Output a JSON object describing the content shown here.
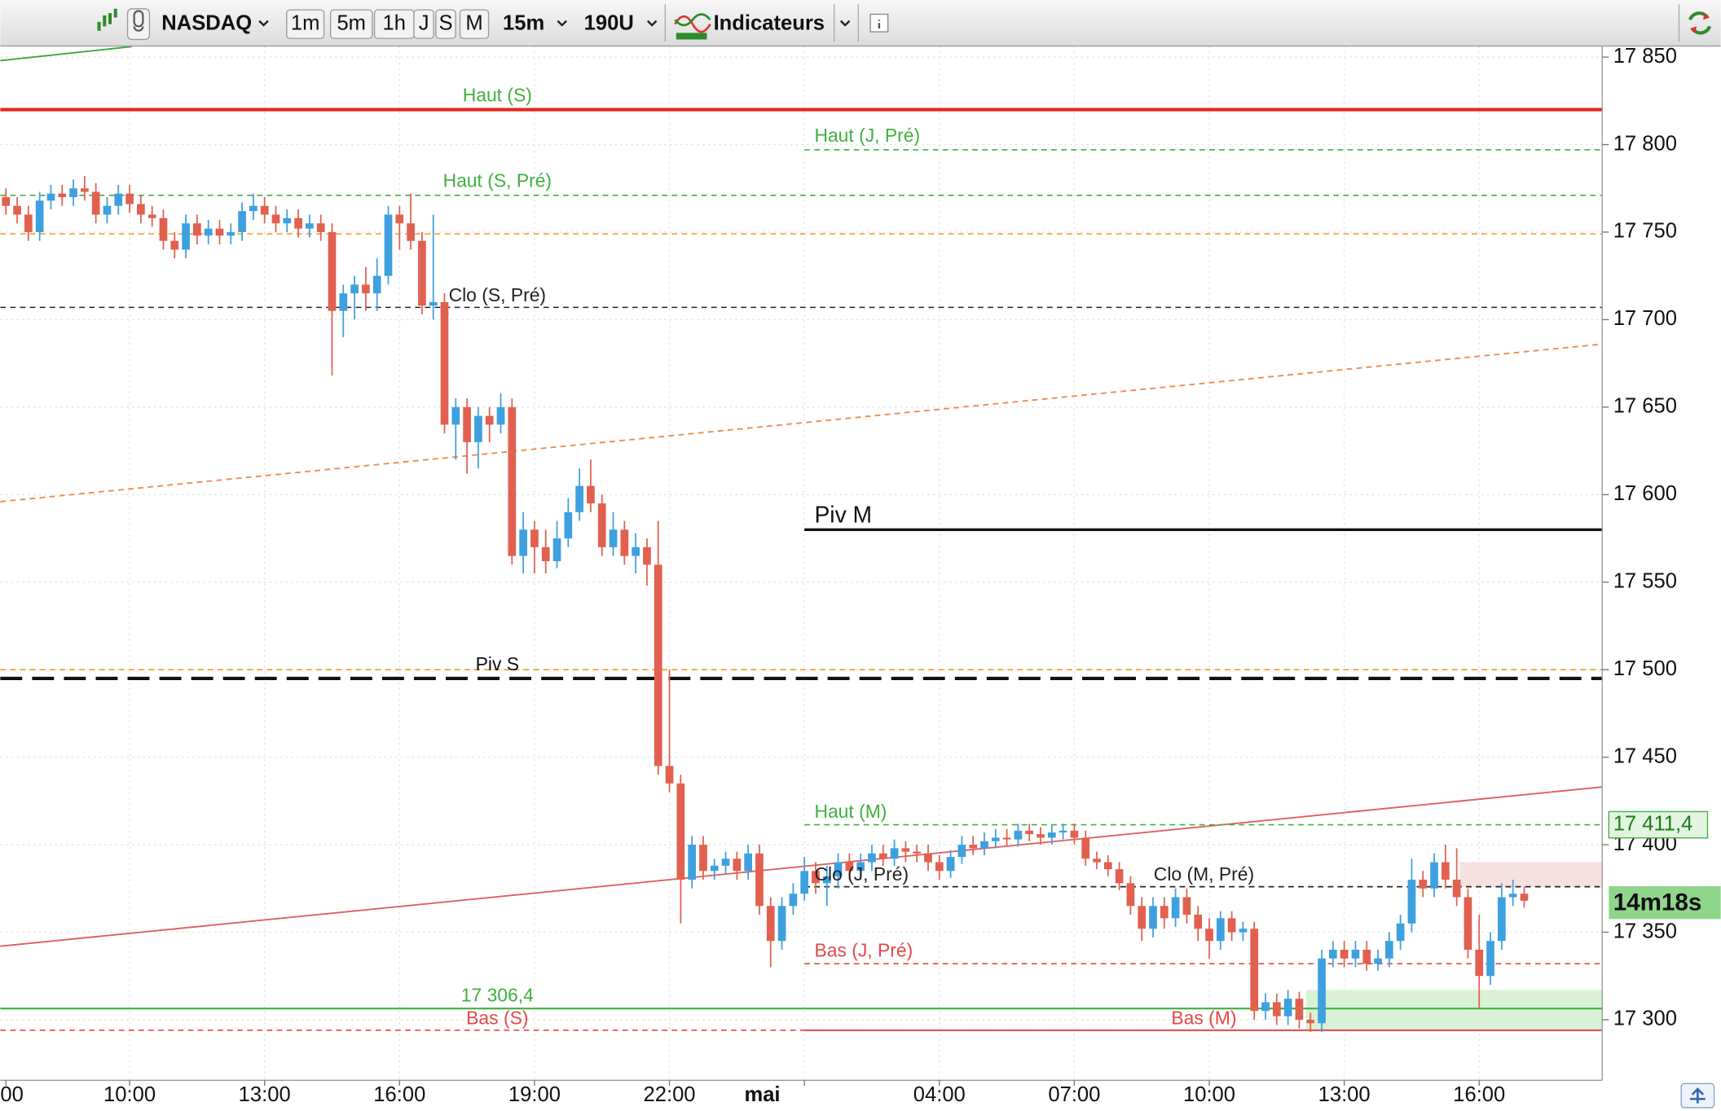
{
  "toolbar": {
    "symbol": "NASDAQ",
    "periods": [
      "1m",
      "5m",
      "1h",
      "J",
      "S",
      "M"
    ],
    "interval": "15m",
    "units": "190U",
    "indicators": "Indicateurs"
  },
  "chart_data": {
    "type": "candlestick",
    "categories": [
      "00",
      null,
      null,
      null,
      null,
      null,
      null,
      null,
      null,
      null,
      null,
      "10:00",
      null,
      null,
      null,
      null,
      null,
      null,
      null,
      null,
      null,
      null,
      null,
      "13:00",
      null,
      null,
      null,
      null,
      null,
      null,
      null,
      null,
      null,
      null,
      null,
      "16:00",
      null,
      null,
      null,
      null,
      null,
      null,
      null,
      null,
      null,
      null,
      null,
      "19:00",
      null,
      null,
      null,
      null,
      null,
      null,
      null,
      null,
      null,
      null,
      null,
      "22:00",
      null,
      null,
      null,
      null,
      null,
      null,
      null,
      null,
      null,
      null,
      null,
      "mai",
      null,
      null,
      null,
      null,
      null,
      null,
      null,
      null,
      null,
      null,
      null,
      "04:00",
      null,
      null,
      null,
      null,
      null,
      null,
      null,
      null,
      null,
      null,
      null,
      "07:00",
      null,
      null,
      null,
      null,
      null,
      null,
      null,
      null,
      null,
      null,
      null,
      "10:00",
      null,
      null,
      null,
      null,
      null,
      null,
      null,
      null,
      null,
      null,
      null,
      "13:00",
      null,
      null,
      null,
      null,
      null,
      null,
      null,
      null,
      null,
      null,
      null,
      "16:00",
      null,
      null,
      null,
      null
    ],
    "open": [
      17770,
      17765,
      17760,
      17750,
      17768,
      17772,
      17770,
      17775,
      17773,
      17760,
      17765,
      17772,
      17766,
      17760,
      17758,
      17745,
      17740,
      17755,
      17748,
      17752,
      17748,
      17750,
      17762,
      17765,
      17760,
      17755,
      17758,
      17752,
      17755,
      17750,
      17705,
      17715,
      17720,
      17715,
      17725,
      17760,
      17755,
      17745,
      17708,
      17710,
      17640,
      17650,
      17630,
      17645,
      17640,
      17650,
      17565,
      17580,
      17570,
      17562,
      17575,
      17590,
      17605,
      17595,
      17570,
      17580,
      17565,
      17570,
      17560,
      17445,
      17435,
      17380,
      17400,
      17385,
      17388,
      17392,
      17385,
      17395,
      17365,
      17345,
      17365,
      17372,
      17385,
      17378,
      17382,
      17390,
      17385,
      17390,
      17395,
      17392,
      17398,
      17396,
      17395,
      17390,
      17385,
      17393,
      17400,
      17398,
      17402,
      17404,
      17403,
      17408,
      17406,
      17404,
      17407,
      17408,
      17404,
      17392,
      17390,
      17386,
      17378,
      17365,
      17352,
      17365,
      17358,
      17370,
      17360,
      17352,
      17345,
      17358,
      17350,
      17352,
      17305,
      17310,
      17302,
      17312,
      17300,
      17298,
      17335,
      17340,
      17335,
      17340,
      17332,
      17335,
      17345,
      17355,
      17380,
      17375,
      17390,
      17380,
      17370,
      17340,
      17325,
      17345,
      17370,
      17372
    ],
    "high": [
      17775,
      17770,
      17765,
      17773,
      17777,
      17777,
      17780,
      17782,
      17778,
      17770,
      17777,
      17777,
      17771,
      17765,
      17763,
      17750,
      17760,
      17760,
      17757,
      17757,
      17755,
      17767,
      17772,
      17770,
      17765,
      17763,
      17763,
      17760,
      17760,
      17755,
      17720,
      17725,
      17730,
      17735,
      17765,
      17765,
      17772,
      17750,
      17760,
      17715,
      17655,
      17655,
      17650,
      17650,
      17658,
      17655,
      17590,
      17585,
      17580,
      17585,
      17598,
      17615,
      17620,
      17600,
      17590,
      17585,
      17578,
      17575,
      17585,
      17500,
      17440,
      17405,
      17405,
      17392,
      17396,
      17396,
      17400,
      17400,
      17370,
      17370,
      17378,
      17393,
      17390,
      17388,
      17395,
      17395,
      17395,
      17400,
      17400,
      17403,
      17402,
      17400,
      17400,
      17394,
      17397,
      17405,
      17405,
      17407,
      17409,
      17409,
      17412,
      17412,
      17410,
      17411,
      17412,
      17412,
      17408,
      17396,
      17394,
      17390,
      17382,
      17370,
      17370,
      17370,
      17375,
      17375,
      17365,
      17358,
      17362,
      17362,
      17356,
      17356,
      17315,
      17315,
      17317,
      17316,
      17304,
      17340,
      17345,
      17345,
      17345,
      17345,
      17340,
      17350,
      17360,
      17392,
      17385,
      17395,
      17400,
      17398,
      17375,
      17360,
      17350,
      17378,
      17380,
      17376
    ],
    "low": [
      17760,
      17755,
      17745,
      17745,
      17763,
      17765,
      17765,
      17768,
      17755,
      17755,
      17760,
      17761,
      17755,
      17753,
      17740,
      17735,
      17735,
      17743,
      17743,
      17743,
      17743,
      17745,
      17757,
      17755,
      17750,
      17750,
      17747,
      17747,
      17745,
      17668,
      17690,
      17700,
      17705,
      17705,
      17720,
      17740,
      17740,
      17703,
      17700,
      17635,
      17620,
      17612,
      17615,
      17630,
      17635,
      17560,
      17555,
      17555,
      17555,
      17558,
      17570,
      17585,
      17590,
      17565,
      17565,
      17560,
      17555,
      17548,
      17440,
      17430,
      17355,
      17375,
      17380,
      17380,
      17383,
      17380,
      17380,
      17360,
      17330,
      17340,
      17360,
      17368,
      17372,
      17365,
      17375,
      17380,
      17380,
      17385,
      17388,
      17388,
      17390,
      17390,
      17385,
      17380,
      17381,
      17389,
      17394,
      17394,
      17398,
      17399,
      17399,
      17402,
      17400,
      17400,
      17403,
      17400,
      17388,
      17386,
      17382,
      17374,
      17360,
      17345,
      17347,
      17352,
      17353,
      17355,
      17345,
      17335,
      17340,
      17345,
      17345,
      17300,
      17300,
      17297,
      17297,
      17295,
      17293,
      17293,
      17330,
      17330,
      17330,
      17328,
      17328,
      17330,
      17340,
      17350,
      17370,
      17370,
      17375,
      17365,
      17335,
      17306,
      17320,
      17340,
      17365,
      17364
    ],
    "close": [
      17765,
      17760,
      17750,
      17768,
      17772,
      17770,
      17775,
      17773,
      17760,
      17765,
      17772,
      17766,
      17760,
      17758,
      17745,
      17740,
      17755,
      17748,
      17752,
      17748,
      17750,
      17762,
      17765,
      17760,
      17755,
      17758,
      17752,
      17755,
      17750,
      17705,
      17715,
      17720,
      17715,
      17725,
      17760,
      17755,
      17745,
      17708,
      17710,
      17640,
      17650,
      17630,
      17645,
      17640,
      17650,
      17565,
      17580,
      17570,
      17562,
      17575,
      17590,
      17605,
      17595,
      17570,
      17580,
      17565,
      17570,
      17560,
      17445,
      17435,
      17380,
      17400,
      17385,
      17388,
      17392,
      17385,
      17395,
      17365,
      17345,
      17365,
      17372,
      17385,
      17378,
      17382,
      17390,
      17385,
      17390,
      17395,
      17392,
      17398,
      17396,
      17395,
      17390,
      17385,
      17393,
      17400,
      17398,
      17402,
      17404,
      17403,
      17408,
      17406,
      17404,
      17407,
      17408,
      17404,
      17392,
      17390,
      17386,
      17378,
      17365,
      17352,
      17365,
      17358,
      17370,
      17360,
      17352,
      17345,
      17358,
      17350,
      17352,
      17305,
      17310,
      17302,
      17312,
      17300,
      17298,
      17335,
      17340,
      17335,
      17340,
      17332,
      17335,
      17345,
      17355,
      17380,
      17375,
      17390,
      17380,
      17370,
      17340,
      17325,
      17345,
      17370,
      17372,
      17368
    ],
    "up_color": "#3ea0df",
    "down_color": "#e2604f",
    "ylim": [
      17265.4,
      17856.3
    ],
    "yticks": [
      {
        "value": 17300,
        "label": "17 300"
      },
      {
        "value": 17350,
        "label": "17 350"
      },
      {
        "value": 17400,
        "label": "17 400"
      },
      {
        "value": 17450,
        "label": "17 450"
      },
      {
        "value": 17500,
        "label": "17 500"
      },
      {
        "value": 17550,
        "label": "17 550"
      },
      {
        "value": 17600,
        "label": "17 600"
      },
      {
        "value": 17650,
        "label": "17 650"
      },
      {
        "value": 17700,
        "label": "17 700"
      },
      {
        "value": 17750,
        "label": "17 750"
      },
      {
        "value": 17800,
        "label": "17 800"
      },
      {
        "value": 17850,
        "label": "17 850"
      }
    ],
    "grid": true,
    "levels": [
      {
        "label": "Haut (S)",
        "value": 17820,
        "color": "#e8251c",
        "label_color": "#3fb13f",
        "style": "solid",
        "width": 3
      },
      {
        "label": "Haut (J, Pré)",
        "value": 17797,
        "color": "#3fb13f",
        "style": "dashed",
        "x_from": 71
      },
      {
        "label": "Haut (S, Pré)",
        "value": 17771,
        "color": "#3fb13f",
        "style": "dashed"
      },
      {
        "value": 17749,
        "color": "#f29a1e",
        "style": "dashed"
      },
      {
        "label": "Clo (S, Pré)",
        "value": 17707,
        "color": "#222222",
        "style": "dashed"
      },
      {
        "label": "Piv M",
        "value": 17580,
        "color": "#111111",
        "style": "solid",
        "width": 2.5,
        "x_from": 71
      },
      {
        "value": 17500,
        "color": "#f29a1e",
        "style": "dashed"
      },
      {
        "label": "Piv S",
        "value": 17495,
        "color": "#111111",
        "style": "longdash",
        "width": 3
      },
      {
        "label": "Haut (M)",
        "value": 17411.4,
        "tag": "17 411,4",
        "color": "#3fb13f",
        "style": "dashed",
        "x_from": 71
      },
      {
        "label": "Clo (J, Pré)",
        "value": 17376,
        "color": "#222222",
        "style": "dashed",
        "x_from": 71
      },
      {
        "label": "Clo (M, Pré)",
        "value": 17376,
        "color": "#222222",
        "style": "dashed",
        "x_from": 71
      },
      {
        "label": "Bas (J, Pré)",
        "value": 17332,
        "color": "#e34848",
        "style": "dashed",
        "x_from": 71
      },
      {
        "label": "17 306,4",
        "value": 17306.4,
        "color": "#3fb13f",
        "style": "solid",
        "width": 1.5
      },
      {
        "label": "Bas (S)",
        "value": 17294,
        "color": "#e34848",
        "style": "dashed"
      },
      {
        "label": "Bas (M)",
        "value": 17294,
        "color": "#e34848",
        "style": "solid",
        "width": 1.5,
        "x_from": 71
      }
    ],
    "trendlines": [
      {
        "x": [
          -0.5,
          142
        ],
        "y": [
          17596,
          17686
        ],
        "color": "#f08a4b",
        "style": "dashed"
      },
      {
        "x": [
          -0.5,
          142
        ],
        "y": [
          17342,
          17433
        ],
        "color": "#e06060",
        "style": "solid"
      },
      {
        "x": [
          -0.5,
          11.2
        ],
        "y": [
          17848,
          17856
        ],
        "color": "#3aa83a",
        "style": "solid"
      }
    ],
    "zones": [
      {
        "y": [
          17294,
          17317
        ],
        "x_from": 115.6,
        "color": "#d9f2d6"
      },
      {
        "y": [
          17376,
          17390
        ],
        "x_from": 129.3,
        "color": "#f7e0e0"
      }
    ],
    "countdown": "14m18s"
  }
}
